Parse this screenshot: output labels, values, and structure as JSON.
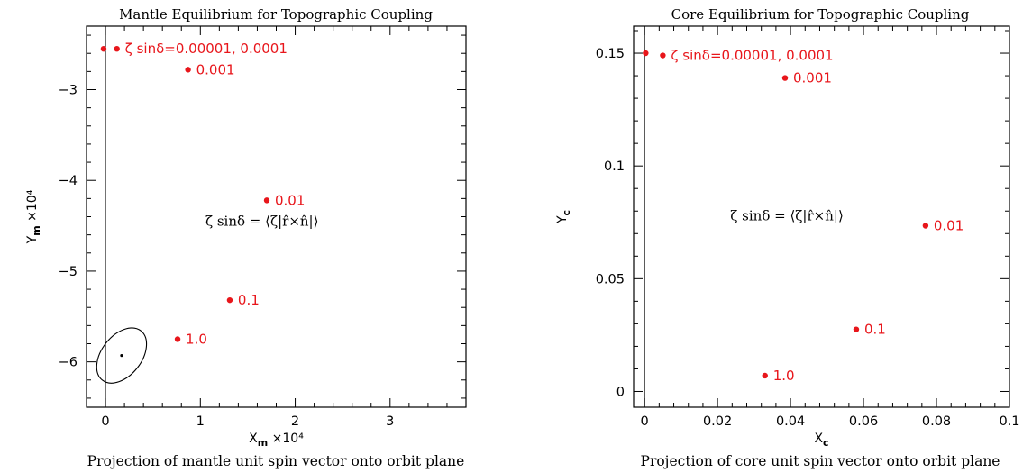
{
  "colors": {
    "points": "#e8161b",
    "ink": "#000000"
  },
  "chart_data": [
    {
      "type": "scatter",
      "title": "Mantle Equilibrium for Topographic Coupling",
      "xlabel": "X_m ×10⁴",
      "ylabel": "Y_m ×10⁴",
      "caption": "Projection of mantle unit spin vector onto orbit plane",
      "xlim": [
        -0.2,
        3.8
      ],
      "ylim": [
        -6.5,
        -2.3
      ],
      "x_ticks": [
        0,
        1,
        2,
        3
      ],
      "y_ticks": [
        -6,
        -5,
        -4,
        -3
      ],
      "x_tick_labels": [
        "0",
        "1",
        "2",
        "3"
      ],
      "y_tick_labels": [
        "−6",
        "−5",
        "−4",
        "−3"
      ],
      "points": [
        {
          "x": -0.02,
          "y": -2.55,
          "label": ""
        },
        {
          "x": 0.12,
          "y": -2.55,
          "label": "ζ sinδ=0.00001,  0.0001"
        },
        {
          "x": 0.87,
          "y": -2.78,
          "label": "0.001"
        },
        {
          "x": 1.7,
          "y": -4.22,
          "label": "0.01"
        },
        {
          "x": 1.31,
          "y": -5.32,
          "label": "0.1"
        },
        {
          "x": 0.76,
          "y": -5.75,
          "label": "1.0"
        }
      ],
      "annotation": "ζ sinδ  =  ⟨ζ|r̂×n̂|⟩",
      "annotation_pos": {
        "x": 1.65,
        "y": -4.5
      },
      "ellipse": {
        "cx": 0.17,
        "cy": -5.93,
        "rx": 0.33,
        "ry": 0.22,
        "angle_deg": -52
      },
      "reference_line_x": 0
    },
    {
      "type": "scatter",
      "title": "Core Equilibrium for Topographic Coupling",
      "xlabel": "X_c",
      "ylabel": "Y_c",
      "caption": "Projection of core unit spin vector onto orbit plane",
      "xlim": [
        -0.003,
        0.1
      ],
      "ylim": [
        -0.007,
        0.162
      ],
      "x_ticks": [
        0,
        0.02,
        0.04,
        0.06,
        0.08,
        0.1
      ],
      "y_ticks": [
        0,
        0.05,
        0.1,
        0.15
      ],
      "x_tick_labels": [
        "0",
        "0.02",
        "0.04",
        "0.06",
        "0.08",
        "0.1"
      ],
      "y_tick_labels": [
        "0",
        "0.05",
        "0.1",
        "0.15"
      ],
      "points": [
        {
          "x": 0.0003,
          "y": 0.15,
          "label": ""
        },
        {
          "x": 0.005,
          "y": 0.149,
          "label": "ζ sinδ=0.00001,  0.0001"
        },
        {
          "x": 0.0385,
          "y": 0.139,
          "label": "0.001"
        },
        {
          "x": 0.077,
          "y": 0.0735,
          "label": "0.01"
        },
        {
          "x": 0.058,
          "y": 0.0275,
          "label": "0.1"
        },
        {
          "x": 0.033,
          "y": 0.007,
          "label": "1.0"
        }
      ],
      "annotation": "ζ sinδ  =  ⟨ζ|r̂×n̂|⟩",
      "annotation_pos": {
        "x": 0.039,
        "y": 0.076
      },
      "reference_line_x": 0
    }
  ]
}
